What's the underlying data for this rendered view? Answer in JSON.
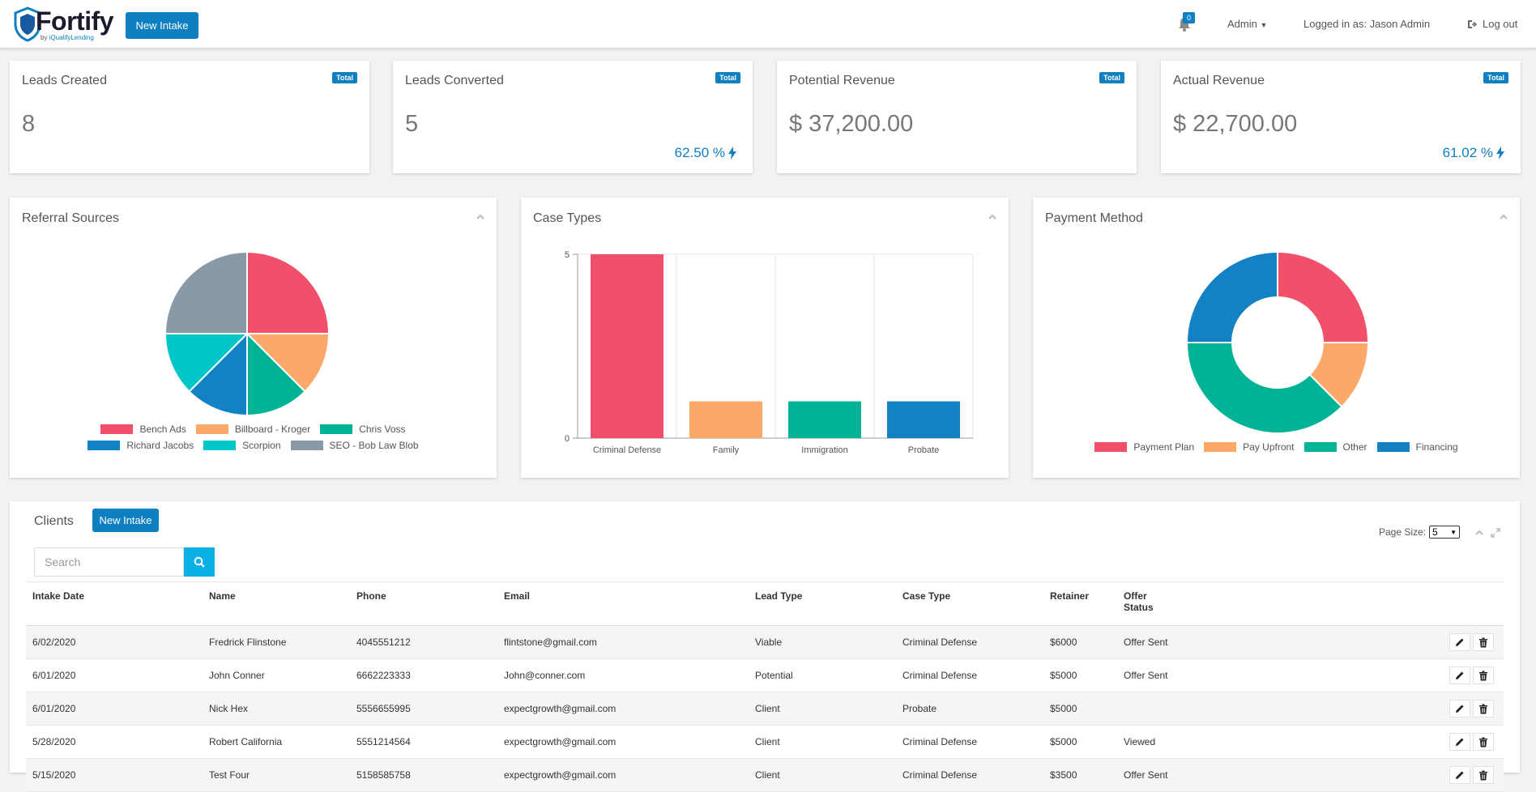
{
  "header": {
    "brand": "Fortify",
    "sub_prefix": "by ",
    "sub_brand": "iQualifyLending",
    "new_intake_label": "New Intake",
    "notif_count": "0",
    "admin_label": "Admin",
    "logged_in_text": "Logged in as: Jason Admin",
    "logout_label": "Log out"
  },
  "stats": [
    {
      "title": "Leads Created",
      "badge": "Total",
      "value": "8",
      "pct": ""
    },
    {
      "title": "Leads Converted",
      "badge": "Total",
      "value": "5",
      "pct": "62.50 %"
    },
    {
      "title": "Potential Revenue",
      "badge": "Total",
      "value": "$ 37,200.00",
      "pct": ""
    },
    {
      "title": "Actual Revenue",
      "badge": "Total",
      "value": "$ 22,700.00",
      "pct": "61.02 %"
    }
  ],
  "chart_data": [
    {
      "type": "pie",
      "title": "Referral Sources",
      "categories": [
        "Bench Ads",
        "Billboard - Kroger",
        "Chris Voss",
        "Richard Jacobs",
        "Scorpion",
        "SEO - Bob Law Blob"
      ],
      "values": [
        2,
        1,
        1,
        1,
        1,
        2
      ],
      "colors": [
        "#f2506a",
        "#fba869",
        "#00b395",
        "#1282c4",
        "#00c6c8",
        "#8a99a8"
      ],
      "legend": "bottom"
    },
    {
      "type": "bar",
      "title": "Case Types",
      "categories": [
        "Criminal Defense",
        "Family",
        "Immigration",
        "Probate"
      ],
      "values": [
        5,
        1,
        1,
        1
      ],
      "colors": [
        "#f2506a",
        "#fba869",
        "#00b395",
        "#1282c4"
      ],
      "ylim": [
        0,
        5
      ],
      "yticks": [
        "0",
        "5"
      ],
      "grid": true
    },
    {
      "type": "pie",
      "title": "Payment Method",
      "donut": true,
      "categories": [
        "Payment Plan",
        "Pay Upfront",
        "Other",
        "Financing"
      ],
      "values": [
        2,
        1,
        3,
        2
      ],
      "colors": [
        "#f2506a",
        "#fba869",
        "#00b395",
        "#1282c4"
      ],
      "legend": "bottom"
    }
  ],
  "clients": {
    "title": "Clients",
    "new_intake_label": "New Intake",
    "search_placeholder": "Search",
    "page_size_label": "Page Size:",
    "page_size_value": "5",
    "columns": [
      "Intake Date",
      "Name",
      "Phone",
      "Email",
      "Lead Type",
      "Case Type",
      "Retainer",
      "Offer\nStatus"
    ],
    "rows": [
      [
        "6/02/2020",
        "Fredrick Flinstone",
        "4045551212",
        "flintstone@gmail.com",
        "Viable",
        "Criminal Defense",
        "$6000",
        "Offer Sent"
      ],
      [
        "6/01/2020",
        "John Conner",
        "6662223333",
        "John@conner.com",
        "Potential",
        "Criminal Defense",
        "$5000",
        "Offer Sent"
      ],
      [
        "6/01/2020",
        "Nick Hex",
        "5556655995",
        "expectgrowth@gmail.com",
        "Client",
        "Probate",
        "$5000",
        ""
      ],
      [
        "5/28/2020",
        "Robert California",
        "5551214564",
        "expectgrowth@gmail.com",
        "Client",
        "Criminal Defense",
        "$5000",
        "Viewed"
      ],
      [
        "5/15/2020",
        "Test Four",
        "5158585758",
        "expectgrowth@gmail.com",
        "Client",
        "Criminal Defense",
        "$3500",
        "Offer Sent"
      ]
    ]
  },
  "colors": {
    "accent": "#0e7fc0",
    "search_button": "#0bb0e6"
  },
  "icons": {
    "notifications": "bell-icon",
    "logout": "logout-icon",
    "bolt": "bolt-icon",
    "collapse": "chevron-up-icon",
    "expand": "expand-icon",
    "edit": "pencil-icon",
    "delete": "trash-icon",
    "search": "search-icon"
  }
}
